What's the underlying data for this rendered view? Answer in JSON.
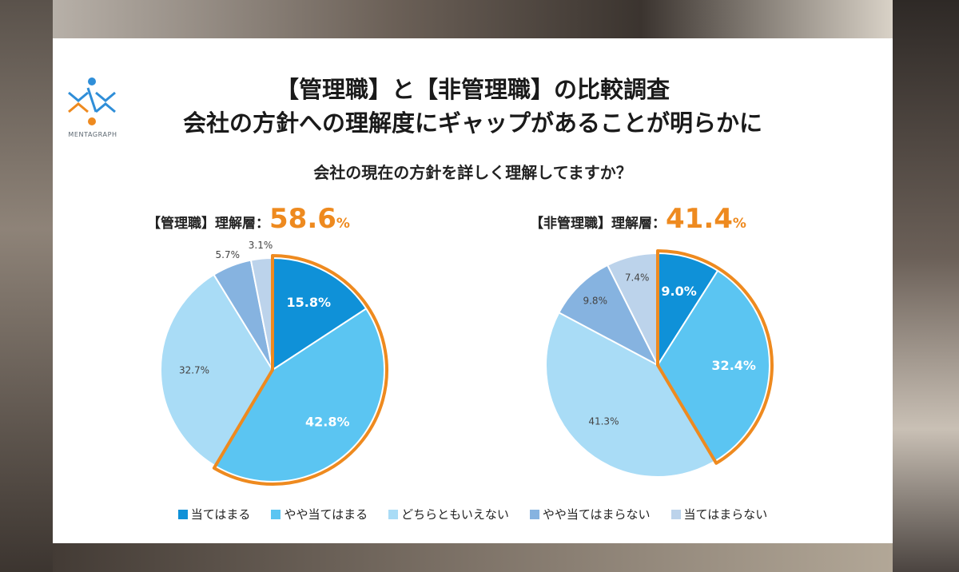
{
  "header": {
    "brand": "MENTAGRAPH",
    "title_line1": "【管理職】と【非管理職】の比較調査",
    "title_line2": "会社の方針への理解度にギャップがあることが明らかに",
    "question": "会社の現在の方針を詳しく理解してますか？"
  },
  "colors": {
    "accent": "#ee8a1f",
    "s1": "#0f91d8",
    "s2": "#5bc5f2",
    "s3": "#a9dcf6",
    "s4": "#86b3e0",
    "s5": "#bcd3eb"
  },
  "chart_data": [
    {
      "type": "pie",
      "title": "【管理職】理解層：",
      "highlight_value": "58.6",
      "highlight_unit": "%",
      "labels": [
        "当てはまる",
        "やや当てはまる",
        "どちらともいえない",
        "やや当てはまらない",
        "当てはまらない"
      ],
      "values": [
        15.8,
        42.8,
        32.7,
        5.7,
        3.1
      ],
      "value_labels": [
        "15.8%",
        "42.8%",
        "32.7%",
        "5.7%",
        "3.1%"
      ],
      "highlighted_slices": [
        0,
        1
      ]
    },
    {
      "type": "pie",
      "title": "【非管理職】理解層：",
      "highlight_value": "41.4",
      "highlight_unit": "%",
      "labels": [
        "当てはまる",
        "やや当てはまる",
        "どちらともいえない",
        "やや当てはまらない",
        "当てはまらない"
      ],
      "values": [
        9.0,
        32.4,
        41.3,
        9.8,
        7.4
      ],
      "value_labels": [
        "9.0%",
        "32.4%",
        "41.3%",
        "9.8%",
        "7.4%"
      ],
      "highlighted_slices": [
        0,
        1
      ]
    }
  ],
  "legend": {
    "items": [
      "当てはまる",
      "やや当てはまる",
      "どちらともいえない",
      "やや当てはまらない",
      "当てはまらない"
    ]
  }
}
